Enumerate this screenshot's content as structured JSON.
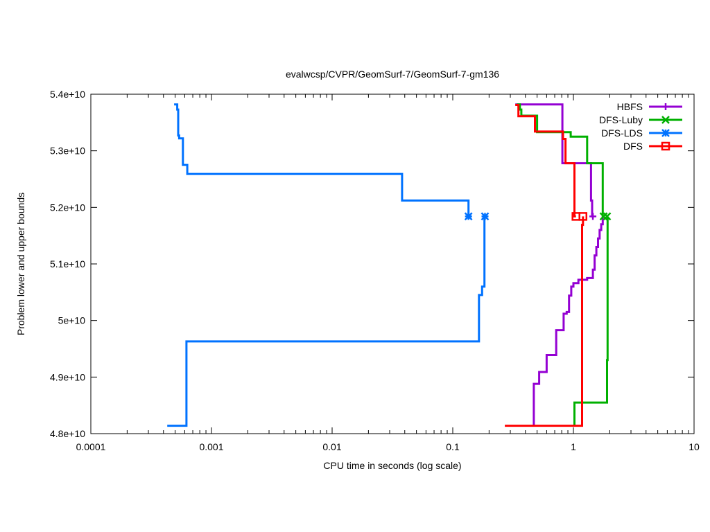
{
  "chart_data": {
    "type": "line",
    "title": "evalwcsp/CVPR/GeomSurf-7/GeomSurf-7-gm136",
    "xlabel": "CPU time in seconds (log scale)",
    "ylabel": "Problem lower and upper bounds",
    "x_scale": "log",
    "xlim": [
      0.0001,
      10
    ],
    "ylim": [
      48000000000,
      54000000000
    ],
    "x_ticks": [
      {
        "value": 0.0001,
        "label": "0.0001"
      },
      {
        "value": 0.001,
        "label": "0.001"
      },
      {
        "value": 0.01,
        "label": "0.01"
      },
      {
        "value": 0.1,
        "label": "0.1"
      },
      {
        "value": 1,
        "label": "1"
      },
      {
        "value": 10,
        "label": "10"
      }
    ],
    "y_ticks": [
      {
        "value": 48000000000,
        "label": "4.8e+10"
      },
      {
        "value": 49000000000,
        "label": "4.9e+10"
      },
      {
        "value": 50000000000,
        "label": "5e+10"
      },
      {
        "value": 51000000000,
        "label": "5.1e+10"
      },
      {
        "value": 52000000000,
        "label": "5.2e+10"
      },
      {
        "value": 53000000000,
        "label": "5.3e+10"
      },
      {
        "value": 54000000000,
        "label": "5.4e+10"
      }
    ],
    "grid": false,
    "legend_position": "top-right",
    "series": [
      {
        "name": "HBFS",
        "color": "#9400d3",
        "marker": "plus",
        "markers": [
          [
            1.45,
            51840000000
          ]
        ],
        "upper": [
          [
            0.33,
            53820000000
          ],
          [
            0.81,
            53820000000
          ],
          [
            0.81,
            52780000000
          ],
          [
            1.4,
            52780000000
          ],
          [
            1.4,
            52120000000
          ],
          [
            1.43,
            52120000000
          ],
          [
            1.43,
            51840000000
          ],
          [
            1.45,
            51840000000
          ]
        ],
        "lower": [
          [
            0.47,
            48140000000
          ],
          [
            0.47,
            48880000000
          ],
          [
            0.52,
            48880000000
          ],
          [
            0.52,
            49090000000
          ],
          [
            0.6,
            49090000000
          ],
          [
            0.6,
            49390000000
          ],
          [
            0.72,
            49390000000
          ],
          [
            0.72,
            49830000000
          ],
          [
            0.83,
            49830000000
          ],
          [
            0.83,
            50120000000
          ],
          [
            0.88,
            50120000000
          ],
          [
            0.88,
            50150000000
          ],
          [
            0.92,
            50150000000
          ],
          [
            0.92,
            50440000000
          ],
          [
            0.96,
            50440000000
          ],
          [
            0.96,
            50600000000
          ],
          [
            1.0,
            50600000000
          ],
          [
            1.0,
            50660000000
          ],
          [
            1.1,
            50660000000
          ],
          [
            1.1,
            50720000000
          ],
          [
            1.3,
            50720000000
          ],
          [
            1.3,
            50750000000
          ],
          [
            1.45,
            50750000000
          ],
          [
            1.45,
            50900000000
          ],
          [
            1.5,
            50900000000
          ],
          [
            1.5,
            51150000000
          ],
          [
            1.55,
            51150000000
          ],
          [
            1.55,
            51300000000
          ],
          [
            1.6,
            51300000000
          ],
          [
            1.6,
            51450000000
          ],
          [
            1.65,
            51450000000
          ],
          [
            1.65,
            51600000000
          ],
          [
            1.7,
            51600000000
          ],
          [
            1.7,
            51700000000
          ],
          [
            1.75,
            51700000000
          ],
          [
            1.75,
            51840000000
          ]
        ]
      },
      {
        "name": "DFS-Luby",
        "color": "#00b000",
        "marker": "x",
        "markers": [
          [
            1.78,
            51840000000
          ],
          [
            1.9,
            51840000000
          ]
        ],
        "upper": [
          [
            0.34,
            53820000000
          ],
          [
            0.36,
            53820000000
          ],
          [
            0.36,
            53730000000
          ],
          [
            0.37,
            53730000000
          ],
          [
            0.37,
            53620000000
          ],
          [
            0.5,
            53620000000
          ],
          [
            0.5,
            53330000000
          ],
          [
            0.95,
            53330000000
          ],
          [
            0.95,
            53250000000
          ],
          [
            1.3,
            53250000000
          ],
          [
            1.3,
            52780000000
          ],
          [
            1.75,
            52780000000
          ],
          [
            1.75,
            51840000000
          ],
          [
            1.78,
            51840000000
          ]
        ],
        "lower": [
          [
            1.02,
            48140000000
          ],
          [
            1.02,
            48550000000
          ],
          [
            1.9,
            48550000000
          ],
          [
            1.9,
            49300000000
          ],
          [
            1.92,
            49300000000
          ],
          [
            1.92,
            51840000000
          ]
        ]
      },
      {
        "name": "DFS-LDS",
        "color": "#0072ff",
        "marker": "star",
        "markers": [
          [
            0.135,
            51840000000
          ],
          [
            0.185,
            51840000000
          ]
        ],
        "upper": [
          [
            0.00049,
            53820000000
          ],
          [
            0.00052,
            53820000000
          ],
          [
            0.00052,
            53730000000
          ],
          [
            0.00053,
            53730000000
          ],
          [
            0.00053,
            53270000000
          ],
          [
            0.00054,
            53270000000
          ],
          [
            0.00054,
            53220000000
          ],
          [
            0.00058,
            53220000000
          ],
          [
            0.00058,
            52750000000
          ],
          [
            0.00063,
            52750000000
          ],
          [
            0.00063,
            52590000000
          ],
          [
            0.038,
            52590000000
          ],
          [
            0.038,
            52120000000
          ],
          [
            0.135,
            52120000000
          ],
          [
            0.135,
            51840000000
          ]
        ],
        "lower": [
          [
            0.00043,
            48140000000
          ],
          [
            0.00062,
            48140000000
          ],
          [
            0.00062,
            49630000000
          ],
          [
            0.165,
            49630000000
          ],
          [
            0.165,
            50450000000
          ],
          [
            0.175,
            50450000000
          ],
          [
            0.175,
            50600000000
          ],
          [
            0.183,
            50600000000
          ],
          [
            0.183,
            51840000000
          ]
        ]
      },
      {
        "name": "DFS",
        "color": "#ff0000",
        "marker": "square",
        "markers": [
          [
            1.05,
            51840000000
          ],
          [
            1.2,
            51840000000
          ]
        ],
        "upper": [
          [
            0.33,
            53810000000
          ],
          [
            0.35,
            53810000000
          ],
          [
            0.35,
            53610000000
          ],
          [
            0.48,
            53610000000
          ],
          [
            0.48,
            53340000000
          ],
          [
            0.82,
            53340000000
          ],
          [
            0.82,
            53210000000
          ],
          [
            0.86,
            53210000000
          ],
          [
            0.86,
            52780000000
          ],
          [
            1.02,
            52780000000
          ],
          [
            1.02,
            51840000000
          ],
          [
            1.05,
            51840000000
          ]
        ],
        "lower": [
          [
            0.27,
            48140000000
          ],
          [
            1.18,
            48140000000
          ],
          [
            1.18,
            51690000000
          ],
          [
            1.2,
            51690000000
          ],
          [
            1.2,
            51840000000
          ]
        ]
      }
    ]
  }
}
